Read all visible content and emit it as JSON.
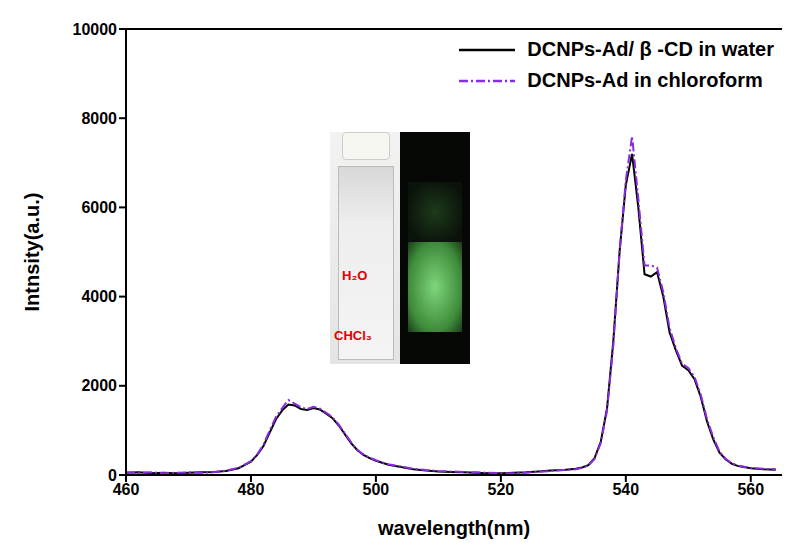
{
  "chart_data": {
    "type": "line",
    "x_label": "wavelength(nm)",
    "y_label": "Intnsity(a.u.)",
    "x": [
      460,
      462,
      464,
      466,
      468,
      470,
      472,
      474,
      476,
      478,
      480,
      481,
      482,
      483,
      484,
      485,
      486,
      487,
      488,
      489,
      490,
      491,
      492,
      493,
      494,
      495,
      496,
      497,
      498,
      499,
      500,
      502,
      504,
      506,
      508,
      510,
      512,
      514,
      516,
      518,
      520,
      522,
      524,
      526,
      528,
      530,
      532,
      533,
      534,
      535,
      536,
      537,
      538,
      539,
      540,
      541,
      542,
      543,
      544,
      545,
      546,
      547,
      548,
      549,
      550,
      551,
      552,
      553,
      554,
      555,
      556,
      557,
      558,
      560,
      562,
      564
    ],
    "series": [
      {
        "name": "DCNPs-Ad/ β -CD in water",
        "color": "#000000",
        "line_style": "solid",
        "values": [
          50,
          60,
          40,
          50,
          40,
          50,
          60,
          70,
          90,
          150,
          300,
          450,
          650,
          950,
          1250,
          1450,
          1580,
          1560,
          1480,
          1460,
          1500,
          1470,
          1380,
          1280,
          1120,
          920,
          720,
          560,
          450,
          380,
          320,
          230,
          180,
          130,
          100,
          80,
          70,
          60,
          50,
          40,
          40,
          50,
          60,
          80,
          100,
          110,
          140,
          170,
          220,
          380,
          750,
          1500,
          3000,
          5000,
          6500,
          7200,
          6000,
          4500,
          4450,
          4550,
          4000,
          3200,
          2800,
          2450,
          2350,
          2150,
          1750,
          1200,
          800,
          500,
          350,
          250,
          200,
          150,
          130,
          120
        ]
      },
      {
        "name": "DCNPs-Ad in chloroform",
        "color": "#8a2be2",
        "line_style": "dashdot",
        "values": [
          60,
          50,
          60,
          40,
          50,
          60,
          50,
          60,
          100,
          160,
          310,
          460,
          680,
          1000,
          1300,
          1500,
          1680,
          1600,
          1520,
          1480,
          1530,
          1490,
          1400,
          1300,
          1140,
          940,
          740,
          570,
          460,
          390,
          330,
          240,
          190,
          140,
          110,
          90,
          80,
          70,
          60,
          50,
          40,
          40,
          50,
          70,
          90,
          110,
          130,
          160,
          210,
          360,
          720,
          1450,
          2900,
          5000,
          6600,
          7600,
          6200,
          4700,
          4700,
          4650,
          4100,
          3300,
          2850,
          2500,
          2400,
          2200,
          1800,
          1250,
          850,
          520,
          360,
          260,
          210,
          160,
          140,
          130
        ]
      }
    ],
    "xlim": [
      460,
      565
    ],
    "xticks": [
      460,
      480,
      500,
      520,
      540,
      560
    ],
    "ylim": [
      0,
      10000
    ],
    "yticks": [
      0,
      2000,
      4000,
      6000,
      8000,
      10000
    ],
    "grid": false,
    "legend": "upper right",
    "annotations": [
      "H₂O",
      "CHCl₃"
    ]
  }
}
